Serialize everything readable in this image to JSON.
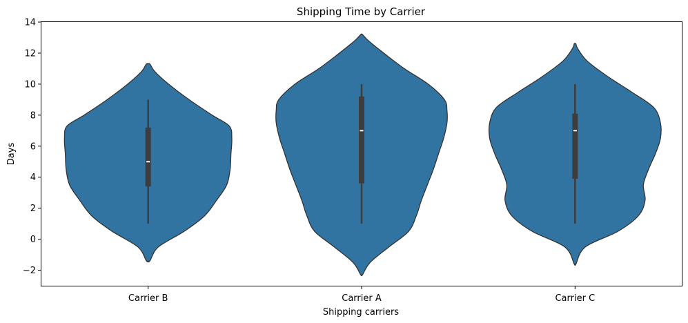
{
  "chart_data": {
    "type": "violin",
    "title": "Shipping Time by Carrier",
    "xlabel": "Shipping carriers",
    "ylabel": "Days",
    "ylim": [
      -3,
      14
    ],
    "yticks": [
      -2,
      0,
      2,
      4,
      6,
      8,
      10,
      12,
      14
    ],
    "grid": false,
    "violin_color": "#3274a1",
    "box_color": "#3d3d3d",
    "median_color": "#ffffff",
    "categories": [
      "Carrier B",
      "Carrier A",
      "Carrier C"
    ],
    "violins": [
      {
        "name": "Carrier B",
        "min": 1,
        "q1": 3.4,
        "median": 5,
        "q3": 7.2,
        "max": 9,
        "density": [
          [
            -1.4,
            0.02
          ],
          [
            -0.5,
            0.12
          ],
          [
            0.5,
            0.42
          ],
          [
            1.5,
            0.66
          ],
          [
            2.5,
            0.8
          ],
          [
            3.5,
            0.92
          ],
          [
            4.5,
            0.96
          ],
          [
            5.5,
            0.97
          ],
          [
            6.5,
            0.98
          ],
          [
            7.3,
            0.95
          ],
          [
            8,
            0.75
          ],
          [
            9,
            0.48
          ],
          [
            10,
            0.24
          ],
          [
            10.8,
            0.08
          ],
          [
            11.3,
            0.02
          ]
        ]
      },
      {
        "name": "Carrier A",
        "min": 1,
        "q1": 3.6,
        "median": 7,
        "q3": 9.2,
        "max": 10,
        "density": [
          [
            -2.3,
            0.01
          ],
          [
            -1.5,
            0.1
          ],
          [
            -0.5,
            0.32
          ],
          [
            0.5,
            0.55
          ],
          [
            1.5,
            0.64
          ],
          [
            2.5,
            0.7
          ],
          [
            3.5,
            0.77
          ],
          [
            4.5,
            0.84
          ],
          [
            5.5,
            0.9
          ],
          [
            6.5,
            0.96
          ],
          [
            7.5,
            1.0
          ],
          [
            8.3,
            1.0
          ],
          [
            9,
            0.97
          ],
          [
            10,
            0.78
          ],
          [
            11,
            0.5
          ],
          [
            12,
            0.26
          ],
          [
            12.8,
            0.08
          ],
          [
            13.2,
            0.01
          ]
        ]
      },
      {
        "name": "Carrier C",
        "min": 1,
        "q1": 3.9,
        "median": 7,
        "q3": 8.1,
        "max": 10,
        "density": [
          [
            -1.6,
            0.01
          ],
          [
            -0.5,
            0.12
          ],
          [
            0.5,
            0.5
          ],
          [
            1.5,
            0.74
          ],
          [
            2.5,
            0.82
          ],
          [
            3.5,
            0.8
          ],
          [
            4.5,
            0.86
          ],
          [
            5.5,
            0.94
          ],
          [
            6.5,
            1.0
          ],
          [
            7.5,
            1.0
          ],
          [
            8.5,
            0.92
          ],
          [
            9.5,
            0.66
          ],
          [
            10.5,
            0.38
          ],
          [
            11.5,
            0.14
          ],
          [
            12.3,
            0.03
          ],
          [
            12.6,
            0.01
          ]
        ]
      }
    ]
  }
}
